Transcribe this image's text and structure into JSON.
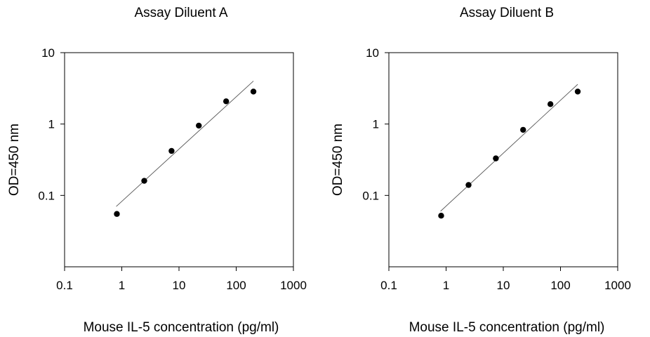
{
  "chart_data": [
    {
      "type": "scatter",
      "title": "Assay Diluent A",
      "xlabel": "Mouse IL-5 concentration (pg/ml)",
      "ylabel": "OD=450 nm",
      "xscale": "log",
      "yscale": "log",
      "xlim": [
        0.1,
        1000
      ],
      "ylim": [
        0.01,
        10
      ],
      "xticks": [
        "0.1",
        "1",
        "10",
        "100",
        "1000"
      ],
      "yticks": [
        "0.1",
        "1",
        "10"
      ],
      "grid": false,
      "legend": "none",
      "series": [
        {
          "x": [
            0.82,
            2.47,
            7.41,
            22.2,
            66.7,
            200
          ],
          "y": [
            0.055,
            0.16,
            0.42,
            0.95,
            2.08,
            2.85
          ]
        }
      ],
      "fit_line": {
        "x": [
          0.8,
          200
        ],
        "y": [
          0.07,
          4.0
        ]
      }
    },
    {
      "type": "scatter",
      "title": "Assay Diluent B",
      "xlabel": "Mouse IL-5 concentration (pg/ml)",
      "ylabel": "OD=450 nm",
      "xscale": "log",
      "yscale": "log",
      "xlim": [
        0.1,
        1000
      ],
      "ylim": [
        0.01,
        10
      ],
      "xticks": [
        "0.1",
        "1",
        "10",
        "100",
        "1000"
      ],
      "yticks": [
        "0.1",
        "1",
        "10"
      ],
      "grid": false,
      "legend": "none",
      "series": [
        {
          "x": [
            0.82,
            2.47,
            7.41,
            22.2,
            66.7,
            200
          ],
          "y": [
            0.052,
            0.14,
            0.33,
            0.83,
            1.9,
            2.85
          ]
        }
      ],
      "fit_line": {
        "x": [
          0.8,
          200
        ],
        "y": [
          0.06,
          3.6
        ]
      }
    }
  ]
}
